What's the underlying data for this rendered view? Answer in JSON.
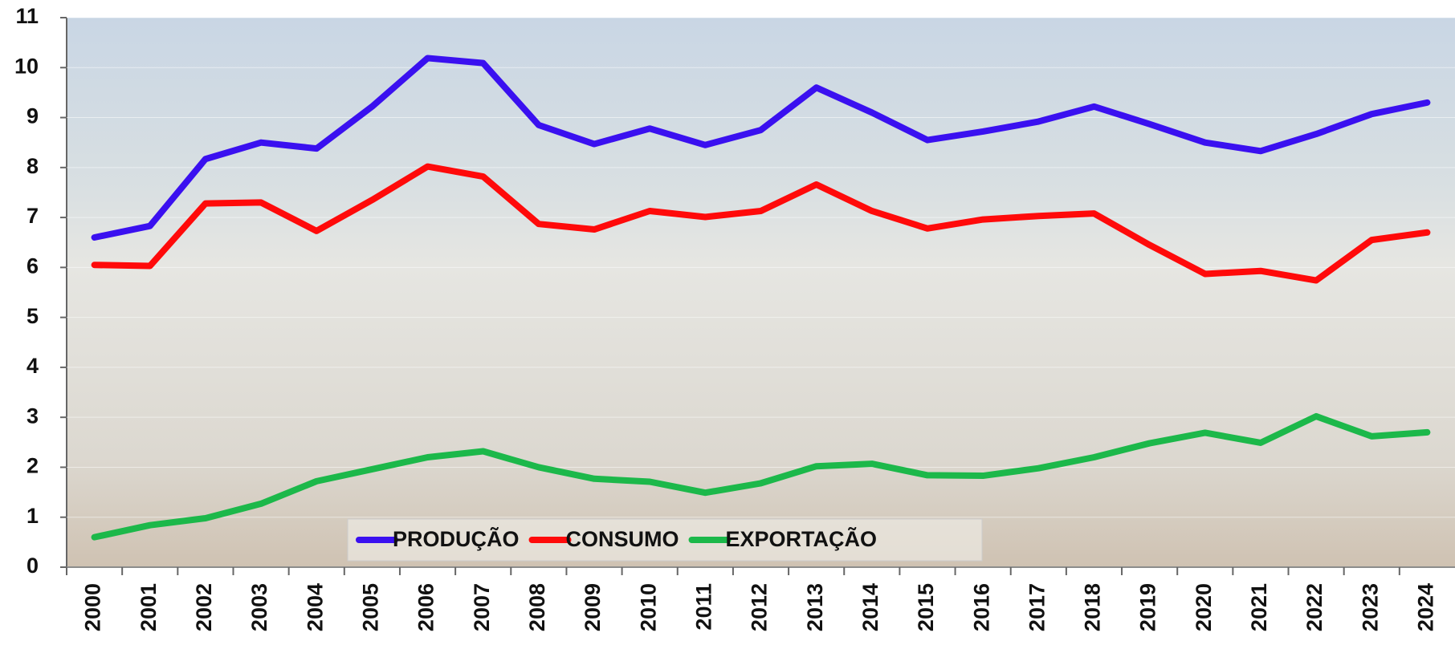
{
  "chart_data": {
    "type": "line",
    "categories": [
      "2000",
      "2001",
      "2002",
      "2003",
      "2004",
      "2005",
      "2006",
      "2007",
      "2008",
      "2009",
      "2010",
      "2011",
      "2012",
      "2013",
      "2014",
      "2015",
      "2016",
      "2017",
      "2018",
      "2019",
      "2020",
      "2021",
      "2022",
      "2023",
      "2024"
    ],
    "series": [
      {
        "name": "PRODUÇÃO",
        "color": "#3a10f0",
        "values": [
          6.6,
          6.83,
          8.17,
          8.5,
          8.38,
          9.22,
          10.19,
          10.09,
          8.85,
          8.47,
          8.78,
          8.45,
          8.75,
          9.6,
          9.1,
          8.55,
          8.72,
          8.92,
          9.22,
          8.87,
          8.5,
          8.33,
          8.67,
          9.07,
          9.3
        ]
      },
      {
        "name": "CONSUMO",
        "color": "#ff0a0a",
        "values": [
          6.05,
          6.03,
          7.28,
          7.3,
          6.73,
          7.35,
          8.02,
          7.82,
          6.87,
          6.76,
          7.13,
          7.01,
          7.13,
          7.66,
          7.13,
          6.78,
          6.96,
          7.03,
          7.08,
          6.45,
          5.87,
          5.93,
          5.74,
          6.55,
          6.7
        ]
      },
      {
        "name": "EXPORTAÇÃO",
        "color": "#1cb84a",
        "values": [
          0.6,
          0.84,
          0.98,
          1.27,
          1.72,
          1.96,
          2.2,
          2.32,
          2.0,
          1.77,
          1.71,
          1.49,
          1.68,
          2.02,
          2.07,
          1.84,
          1.83,
          1.98,
          2.2,
          2.48,
          2.69,
          2.49,
          3.02,
          2.62,
          2.7
        ]
      }
    ],
    "ylim": [
      0,
      11
    ],
    "yticks": [
      0,
      1,
      2,
      3,
      4,
      5,
      6,
      7,
      8,
      9,
      10,
      11
    ],
    "grid": true
  }
}
